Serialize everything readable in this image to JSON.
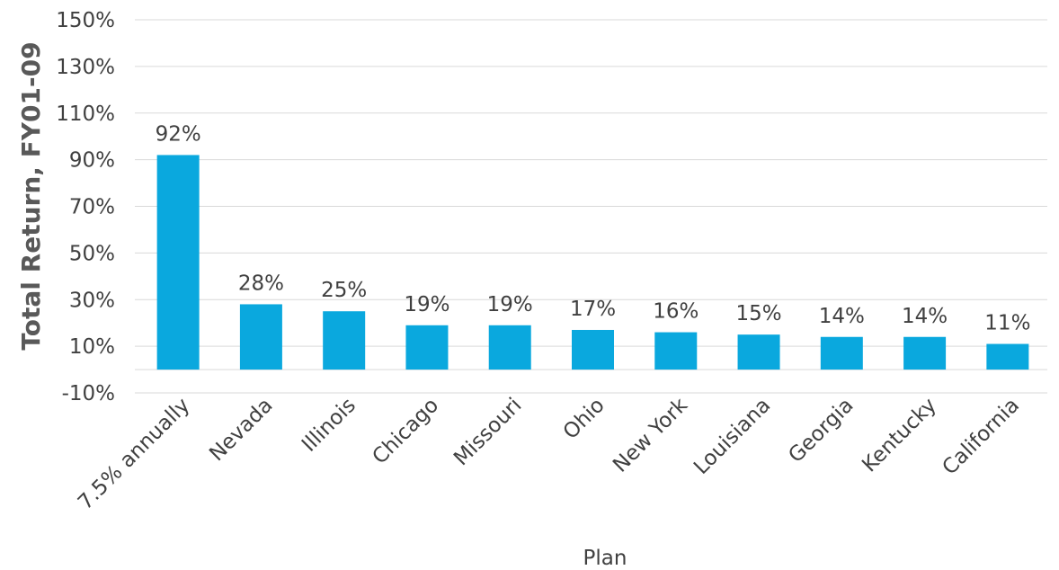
{
  "chart_data": {
    "type": "bar",
    "categories": [
      "7.5% annually",
      "Nevada",
      "Illinois",
      "Chicago",
      "Missouri",
      "Ohio",
      "New York",
      "Louisiana",
      "Georgia",
      "Kentucky",
      "California"
    ],
    "values": [
      92,
      28,
      25,
      19,
      19,
      17,
      16,
      15,
      14,
      14,
      11
    ],
    "data_labels": [
      "92%",
      "28%",
      "25%",
      "19%",
      "19%",
      "17%",
      "16%",
      "15%",
      "14%",
      "14%",
      "11%"
    ],
    "title": "",
    "xlabel": "Plan",
    "ylabel": "Total Return, FY01-09",
    "ylim": [
      -10,
      150
    ],
    "yticks": [
      -10,
      10,
      30,
      50,
      70,
      90,
      110,
      130,
      150
    ],
    "ytick_labels": [
      "-10%",
      "10%",
      "30%",
      "50%",
      "70%",
      "90%",
      "110%",
      "130%",
      "150%"
    ],
    "grid": true,
    "legend": "none",
    "bar_color": "#0aa8de"
  }
}
